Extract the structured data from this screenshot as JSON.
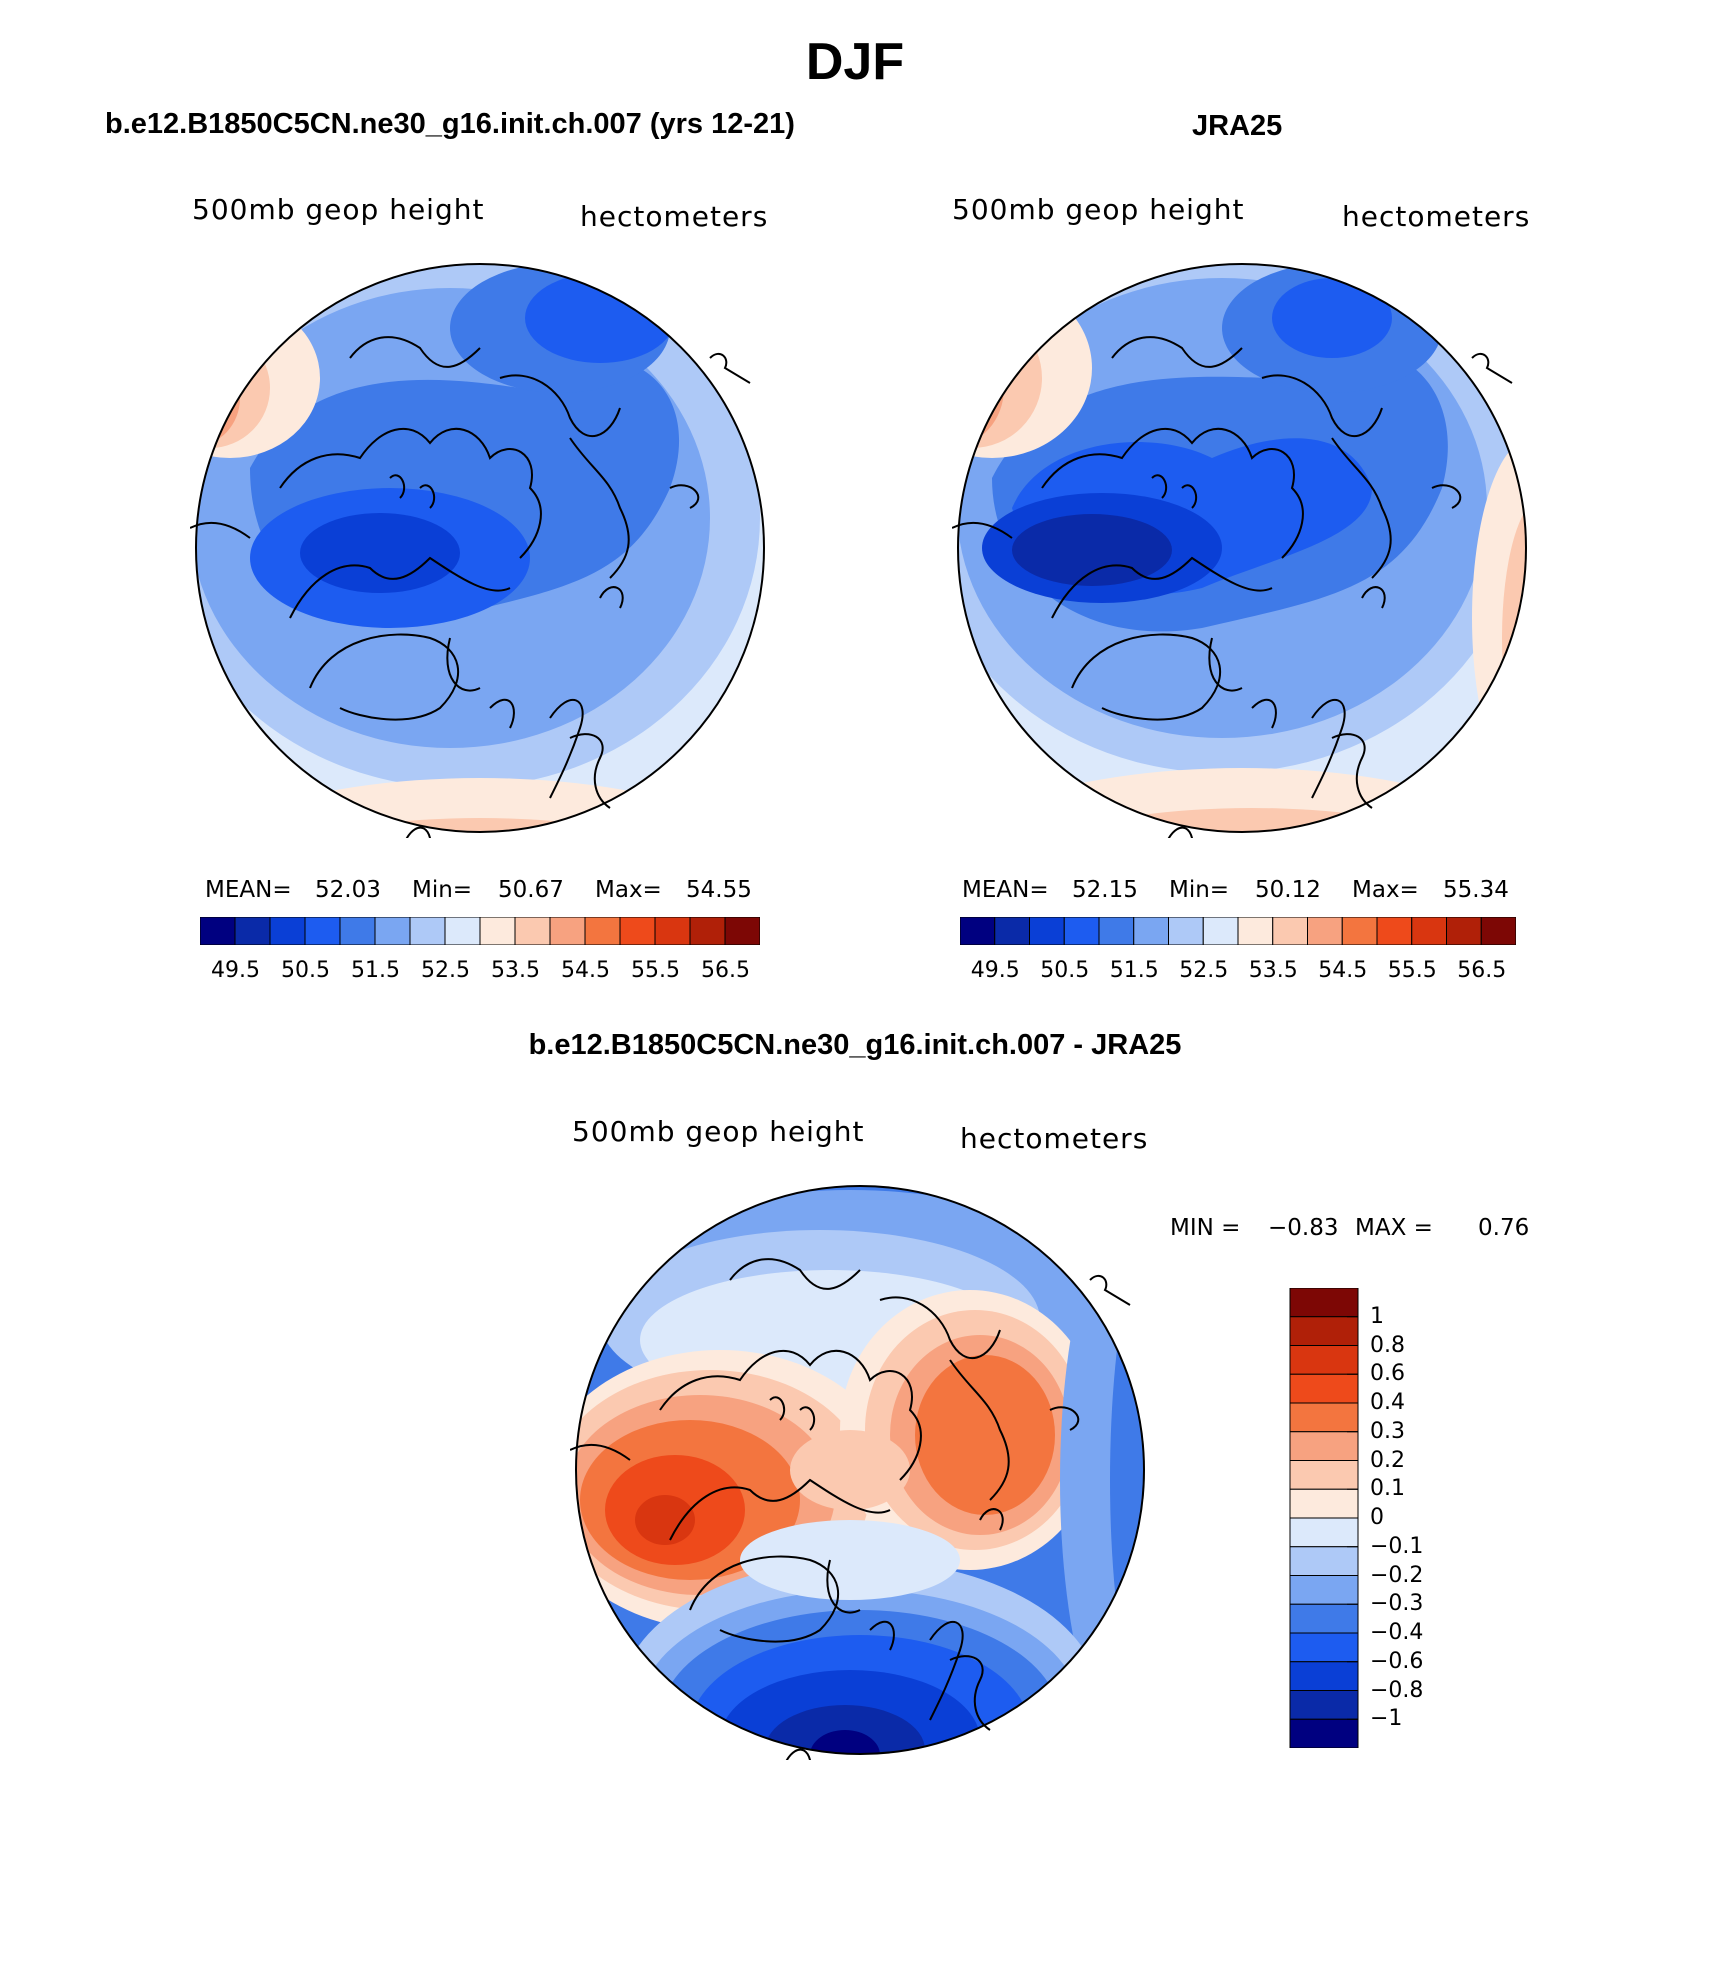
{
  "figure_title": "DJF",
  "panels": [
    {
      "title": "b.e12.B1850C5CN.ne30_g16.init.ch.007 (yrs 12-21)",
      "left_string": "500mb geop height",
      "right_string": "hectometers",
      "stats": {
        "mean_label": "MEAN=",
        "mean": "52.03",
        "min_label": "Min=",
        "min": "50.67",
        "max_label": "Max=",
        "max": "54.55"
      },
      "colorbar_ticks": [
        "49.5",
        "50.5",
        "51.5",
        "52.5",
        "53.5",
        "54.5",
        "55.5",
        "56.5"
      ]
    },
    {
      "title": "JRA25",
      "left_string": "500mb geop height",
      "right_string": "hectometers",
      "stats": {
        "mean_label": "MEAN=",
        "mean": "52.15",
        "min_label": "Min=",
        "min": "50.12",
        "max_label": "Max=",
        "max": "55.34"
      },
      "colorbar_ticks": [
        "49.5",
        "50.5",
        "51.5",
        "52.5",
        "53.5",
        "54.5",
        "55.5",
        "56.5"
      ]
    },
    {
      "title": "b.e12.B1850C5CN.ne30_g16.init.ch.007 - JRA25",
      "left_string": "500mb geop height",
      "right_string": "hectometers",
      "stats": {
        "min_label": "MIN =",
        "min": "−0.83",
        "max_label": "MAX =",
        "max": "0.76"
      },
      "colorbar_ticks": [
        "1",
        "0.8",
        "0.6",
        "0.4",
        "0.3",
        "0.2",
        "0.1",
        "0",
        "−0.1",
        "−0.2",
        "−0.3",
        "−0.4",
        "−0.6",
        "−0.8",
        "−1"
      ]
    }
  ],
  "colors": {
    "field_levels": [
      "#000080",
      "#0a2aa8",
      "#0a3fd6",
      "#1d5cf0",
      "#3f7ae8",
      "#7aa6f2",
      "#aec9f7",
      "#dce9fb",
      "#fdeadd",
      "#fbc9b0",
      "#f7a280",
      "#f3753f",
      "#ee4a1b",
      "#d93610",
      "#b02008",
      "#7d0705"
    ],
    "diff_levels": [
      "#7d0705",
      "#b02008",
      "#d93610",
      "#ee4a1b",
      "#f3753f",
      "#f7a280",
      "#fbc9b0",
      "#fdeadd",
      "#dce9fb",
      "#aec9f7",
      "#7aa6f2",
      "#3f7ae8",
      "#1d5cf0",
      "#0a3fd6",
      "#0a2aa8",
      "#000080"
    ]
  }
}
